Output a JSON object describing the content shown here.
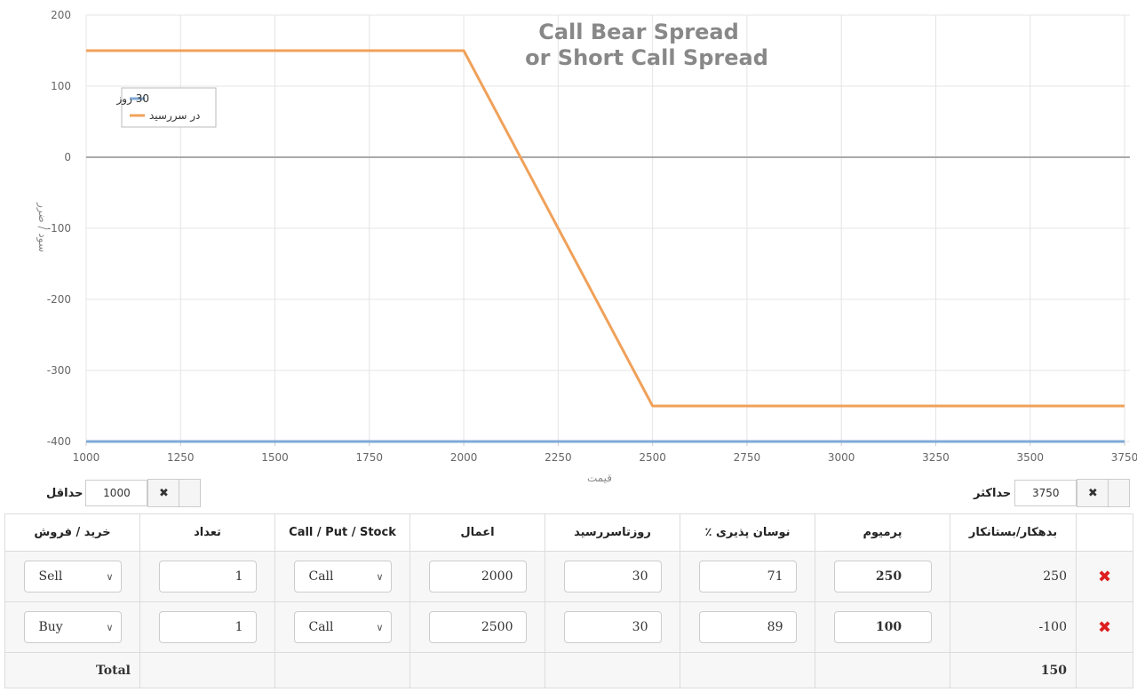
{
  "chart_data": {
    "type": "line",
    "title": [
      "Call Bear Spread",
      "or Short Call Spread"
    ],
    "xlabel": "قیمت",
    "ylabel": "سود / ضرر",
    "xlim": [
      1000,
      3750
    ],
    "ylim": [
      -400,
      200
    ],
    "x_ticks": [
      1000,
      1250,
      1500,
      1750,
      2000,
      2250,
      2500,
      2750,
      3000,
      3250,
      3500,
      3750
    ],
    "y_ticks": [
      200,
      100,
      0,
      -100,
      -200,
      -300,
      -400
    ],
    "grid": true,
    "legend_position": "top-left",
    "series": [
      {
        "name": "30 روز",
        "color": "#7fa9d6",
        "x": [
          1000,
          3750
        ],
        "y": [
          -400,
          -400
        ]
      },
      {
        "name": "در سررسید",
        "color": "#f0a15a",
        "x": [
          1000,
          2000,
          2500,
          3750
        ],
        "y": [
          150,
          150,
          -350,
          -350
        ]
      }
    ]
  },
  "range": {
    "min_label": "حداقل",
    "min_value": "1000",
    "max_label": "حداکثر",
    "max_value": "3750",
    "clear_icon": "✖"
  },
  "table": {
    "headers": {
      "debit_credit": "بدهکار/بستانکار",
      "premium": "پرمیوم",
      "volatility": "٪ نوسان پذیری",
      "days": "روزتاسررسید",
      "strike": "اعمال",
      "type": "Call / Put / Stock",
      "qty": "تعداد",
      "side": "خرید / فروش"
    },
    "rows": [
      {
        "delete_icon": "✖",
        "debit_credit": "250",
        "premium": "250",
        "volatility": "71",
        "days": "30",
        "strike": "2000",
        "type": "Call",
        "qty": "1",
        "side": "Sell"
      },
      {
        "delete_icon": "✖",
        "debit_credit": "-100",
        "premium": "100",
        "volatility": "89",
        "days": "30",
        "strike": "2500",
        "type": "Call",
        "qty": "1",
        "side": "Buy"
      }
    ],
    "total_label": "Total",
    "total_value": "150"
  },
  "icons": {
    "chevron": "chevron-down-icon",
    "clear": "close-icon",
    "delete": "delete-icon"
  },
  "colors": {
    "grid": "#e4e4e4",
    "zero_line": "#aaaaaa",
    "title": "#888888",
    "delete": "#dd1f1f"
  }
}
